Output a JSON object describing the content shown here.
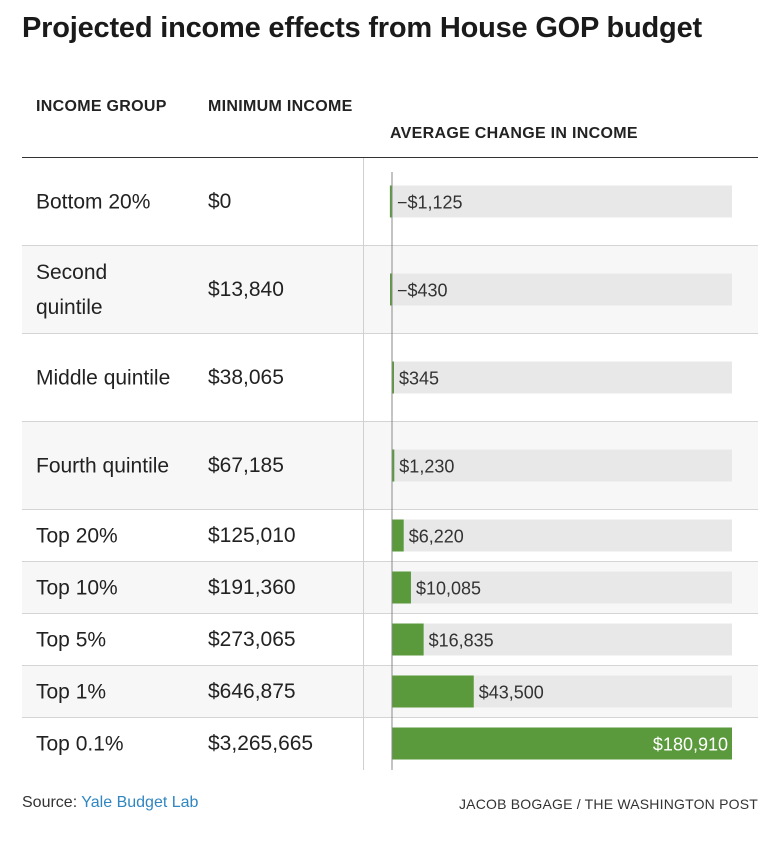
{
  "title": "Projected income effects from House GOP budget",
  "headers": {
    "income_group": "INCOME GROUP",
    "minimum_income": "MINIMUM INCOME",
    "average_change": "AVERAGE CHANGE IN INCOME"
  },
  "rows": [
    {
      "group": "Bottom 20%",
      "min_income": "$0",
      "change_label": "−$1,125"
    },
    {
      "group": "Second quintile",
      "min_income": "$13,840",
      "change_label": "−$430"
    },
    {
      "group": "Middle quintile",
      "min_income": "$38,065",
      "change_label": "$345"
    },
    {
      "group": "Fourth quintile",
      "min_income": "$67,185",
      "change_label": "$1,230"
    },
    {
      "group": "Top 20%",
      "min_income": "$125,010",
      "change_label": "$6,220"
    },
    {
      "group": "Top 10%",
      "min_income": "$191,360",
      "change_label": "$10,085"
    },
    {
      "group": "Top 5%",
      "min_income": "$273,065",
      "change_label": "$16,835"
    },
    {
      "group": "Top 1%",
      "min_income": "$646,875",
      "change_label": "$43,500"
    },
    {
      "group": "Top 0.1%",
      "min_income": "$3,265,665",
      "change_label": "$180,910"
    }
  ],
  "chart_data": {
    "type": "bar",
    "orientation": "horizontal",
    "categories": [
      "Bottom 20%",
      "Second quintile",
      "Middle quintile",
      "Fourth quintile",
      "Top 20%",
      "Top 10%",
      "Top 5%",
      "Top 1%",
      "Top 0.1%"
    ],
    "values": [
      -1125,
      -430,
      345,
      1230,
      6220,
      10085,
      16835,
      43500,
      180910
    ],
    "value_labels": [
      "−$1,125",
      "−$430",
      "$345",
      "$1,230",
      "$6,220",
      "$10,085",
      "$16,835",
      "$43,500",
      "$180,910"
    ],
    "xlim": [
      -1125,
      180910
    ],
    "bar_color": "#5a9a3c",
    "track_color": "#e8e8e8"
  },
  "footer": {
    "source_prefix": "Source: ",
    "source_link": "Yale Budget Lab",
    "credit": "JACOB BOGAGE / THE WASHINGTON POST"
  }
}
